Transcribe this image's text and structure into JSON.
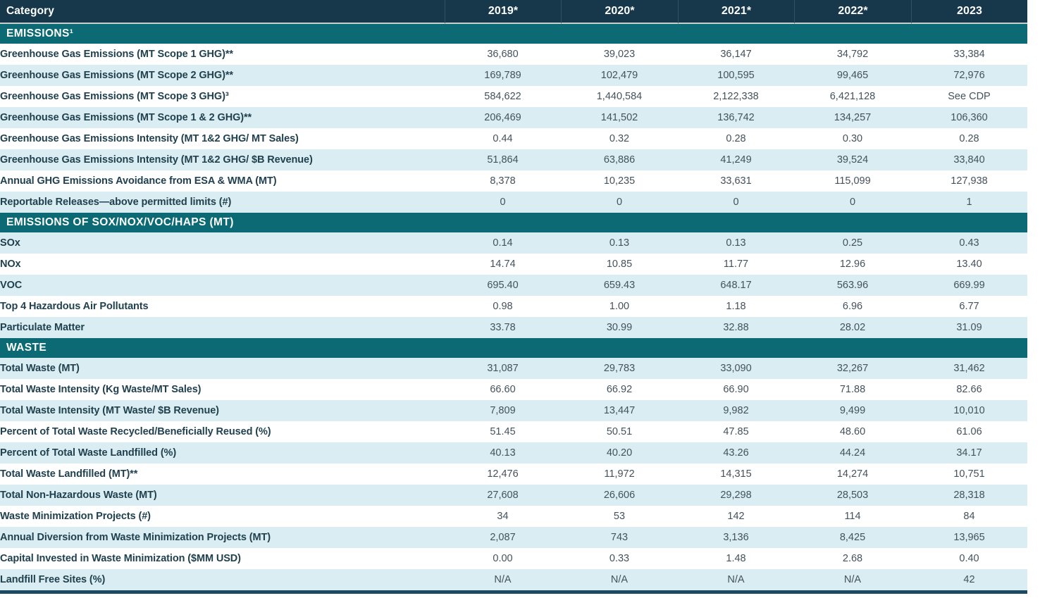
{
  "colors": {
    "header_bg": "#16384a",
    "section_bg": "#0b6a73",
    "row_shaded_bg": "#d9edf2",
    "row_white_bg": "#ffffff",
    "label_text": "#21414f",
    "value_text": "#44525c",
    "header_text": "#ffffff",
    "bottom_border": "#1c4a61",
    "header_divider": "#c9ced1"
  },
  "table": {
    "header": {
      "category_label": "Category",
      "years": [
        "2019*",
        "2020*",
        "2021*",
        "2022*",
        "2023"
      ]
    },
    "sections": [
      {
        "title": "EMISSIONS¹",
        "first_row_shaded": false,
        "rows": [
          {
            "label": "Greenhouse Gas Emissions (MT Scope 1 GHG)**",
            "values": [
              "36,680",
              "39,023",
              "36,147",
              "34,792",
              "33,384"
            ]
          },
          {
            "label": "Greenhouse Gas Emissions (MT Scope 2 GHG)**",
            "values": [
              "169,789",
              "102,479",
              "100,595",
              "99,465",
              "72,976"
            ]
          },
          {
            "label": "Greenhouse Gas Emissions (MT Scope 3 GHG)³",
            "values": [
              "584,622",
              "1,440,584",
              "2,122,338",
              "6,421,128",
              "See CDP"
            ]
          },
          {
            "label": "Greenhouse Gas Emissions (MT Scope 1 & 2 GHG)**",
            "values": [
              "206,469",
              "141,502",
              "136,742",
              "134,257",
              "106,360"
            ]
          },
          {
            "label": "Greenhouse Gas Emissions Intensity (MT 1&2 GHG/ MT Sales)",
            "values": [
              "0.44",
              "0.32",
              "0.28",
              "0.30",
              "0.28"
            ]
          },
          {
            "label": "Greenhouse Gas Emissions Intensity (MT 1&2 GHG/ $B Revenue)",
            "values": [
              "51,864",
              "63,886",
              "41,249",
              "39,524",
              "33,840"
            ]
          },
          {
            "label": "Annual GHG Emissions Avoidance from ESA & WMA (MT)",
            "values": [
              "8,378",
              "10,235",
              "33,631",
              "115,099",
              "127,938"
            ]
          },
          {
            "label": "Reportable Releases—above permitted limits (#)",
            "values": [
              "0",
              "0",
              "0",
              "0",
              "1"
            ]
          }
        ]
      },
      {
        "title": "EMISSIONS OF SOX/NOX/VOC/HAPS (MT)",
        "first_row_shaded": true,
        "rows": [
          {
            "label": "SOx",
            "values": [
              "0.14",
              "0.13",
              "0.13",
              "0.25",
              "0.43"
            ]
          },
          {
            "label": "NOx",
            "values": [
              "14.74",
              "10.85",
              "11.77",
              "12.96",
              "13.40"
            ]
          },
          {
            "label": "VOC",
            "values": [
              "695.40",
              "659.43",
              "648.17",
              "563.96",
              "669.99"
            ]
          },
          {
            "label": "Top 4 Hazardous Air Pollutants",
            "values": [
              "0.98",
              "1.00",
              "1.18",
              "6.96",
              "6.77"
            ]
          },
          {
            "label": "Particulate Matter",
            "values": [
              "33.78",
              "30.99",
              "32.88",
              "28.02",
              "31.09"
            ]
          }
        ]
      },
      {
        "title": "WASTE",
        "first_row_shaded": true,
        "rows": [
          {
            "label": "Total Waste (MT)",
            "values": [
              "31,087",
              "29,783",
              "33,090",
              "32,267",
              "31,462"
            ]
          },
          {
            "label": "Total Waste Intensity (Kg Waste/MT Sales)",
            "values": [
              "66.60",
              "66.92",
              "66.90",
              "71.88",
              "82.66"
            ]
          },
          {
            "label": "Total Waste Intensity (MT Waste/ $B Revenue)",
            "values": [
              "7,809",
              "13,447",
              "9,982",
              "9,499",
              "10,010"
            ]
          },
          {
            "label": "Percent of Total Waste Recycled/Beneficially Reused (%)",
            "values": [
              "51.45",
              "50.51",
              "47.85",
              "48.60",
              "61.06"
            ]
          },
          {
            "label": "Percent of Total Waste Landfilled (%)",
            "values": [
              "40.13",
              "40.20",
              "43.26",
              "44.24",
              "34.17"
            ]
          },
          {
            "label": "Total Waste Landfilled (MT)**",
            "values": [
              "12,476",
              "11,972",
              "14,315",
              "14,274",
              "10,751"
            ]
          },
          {
            "label": "Total Non-Hazardous Waste (MT)",
            "values": [
              "27,608",
              "26,606",
              "29,298",
              "28,503",
              "28,318"
            ]
          },
          {
            "label": "Waste Minimization Projects (#)",
            "values": [
              "34",
              "53",
              "142",
              "114",
              "84"
            ]
          },
          {
            "label": "Annual Diversion from Waste Minimization Projects (MT)",
            "values": [
              "2,087",
              "743",
              "3,136",
              "8,425",
              "13,965"
            ]
          },
          {
            "label": "Capital Invested in Waste Minimization ($MM USD)",
            "values": [
              "0.00",
              "0.33",
              "1.48",
              "2.68",
              "0.40"
            ]
          },
          {
            "label": "Landfill Free Sites (%)",
            "values": [
              "N/A",
              "N/A",
              "N/A",
              "N/A",
              "42"
            ]
          }
        ]
      }
    ]
  }
}
